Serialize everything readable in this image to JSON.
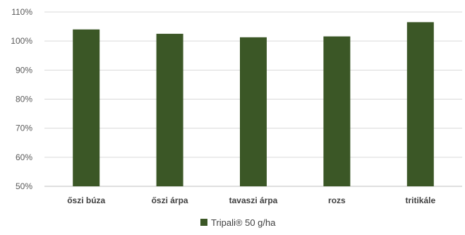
{
  "chart_data": {
    "type": "bar",
    "categories": [
      "őszi búza",
      "őszi árpa",
      "tavaszi árpa",
      "rozs",
      "tritikále"
    ],
    "series": [
      {
        "name": "Tripali® 50 g/ha",
        "values": [
          104,
          102.5,
          101.3,
          101.6,
          106.5
        ],
        "color": "#3b5726"
      }
    ],
    "ylim": [
      50,
      110
    ],
    "yticks": [
      50,
      60,
      70,
      80,
      90,
      100,
      110
    ],
    "ytick_labels": [
      "50%",
      "60%",
      "70%",
      "80%",
      "90%",
      "100%",
      "110%"
    ],
    "grid": true,
    "legend": "bottom-center",
    "title": "",
    "xlabel": "",
    "ylabel": ""
  }
}
